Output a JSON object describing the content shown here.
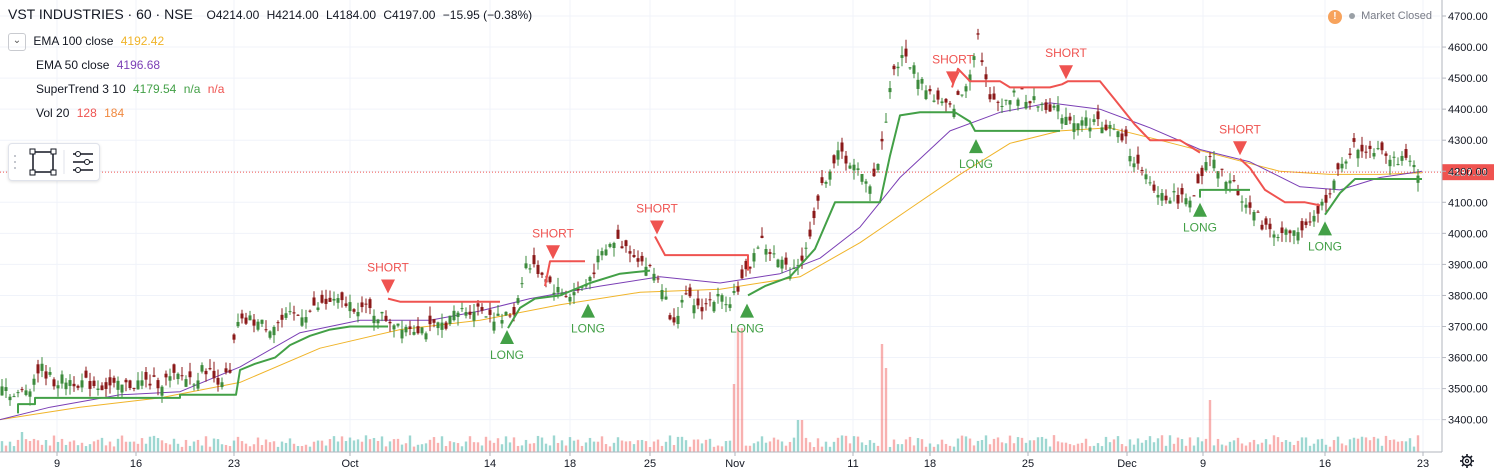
{
  "header": {
    "symbol": "VST INDUSTRIES · 60 · NSE",
    "open": "O4214.00",
    "high": "H4214.00",
    "low": "L4184.00",
    "close": "C4197.00",
    "change": "−15.95 (−0.38%)"
  },
  "status": {
    "text": "Market Closed",
    "icon": "exclamation-icon"
  },
  "legend": {
    "ema100": {
      "label": "EMA 100 close",
      "value": "4192.42",
      "color": "#f0b429"
    },
    "ema50": {
      "label": "EMA 50 close",
      "value": "4196.68",
      "color": "#7b3fb5"
    },
    "supertrend": {
      "label": "SuperTrend 3 10",
      "value": "4179.54",
      "na1": "n/a",
      "na2": "n/a",
      "color_up": "#43a047",
      "color_down": "#ef5350"
    },
    "vol": {
      "label": "Vol 20",
      "v1": "128",
      "v2": "184",
      "color_v1": "#ef5350",
      "color_v2": "#f0883e"
    }
  },
  "toolbox": {
    "icons": [
      "rectangle-select-icon",
      "object-tree-icon"
    ]
  },
  "colors": {
    "bull": "#26a69a",
    "bear": "#ef5350",
    "candle_up_body": "#3d8b3d",
    "candle_down_body": "#8b1a1a",
    "supertrend_up": "#43a047",
    "supertrend_down": "#ef5350",
    "ema100": "#f0b429",
    "ema50": "#7b3fb5",
    "price_line": "#ef5350",
    "grid": "#f0f3fa"
  },
  "chart_data": {
    "type": "candlestick",
    "x_tick_labels": [
      "9",
      "16",
      "23",
      "Oct",
      "14",
      "18",
      "25",
      "Nov",
      "11",
      "18",
      "25",
      "Dec",
      "9",
      "16",
      "23"
    ],
    "y_ticks": [
      3400,
      3500,
      3600,
      3700,
      3800,
      3900,
      4000,
      4100,
      4200,
      4300,
      4400,
      4500,
      4600,
      4700
    ],
    "y_tick_labels": [
      "3400.00",
      "3500.00",
      "3600.00",
      "3700.00",
      "3800.00",
      "3900.00",
      "4000.00",
      "4100.00",
      "4200.00",
      "4300.00",
      "4400.00",
      "4500.00",
      "4600.00",
      "4700.00"
    ],
    "ylim": [
      3320,
      4710
    ],
    "last_price": 4197.0,
    "last_price_label": "4197.00",
    "close_path": [
      [
        0,
        3530
      ],
      [
        15,
        3470
      ],
      [
        30,
        3510
      ],
      [
        40,
        3570
      ],
      [
        55,
        3520
      ],
      [
        65,
        3530
      ],
      [
        80,
        3520
      ],
      [
        100,
        3510
      ],
      [
        120,
        3505
      ],
      [
        140,
        3520
      ],
      [
        160,
        3520
      ],
      [
        180,
        3540
      ],
      [
        195,
        3530
      ],
      [
        205,
        3570
      ],
      [
        215,
        3530
      ],
      [
        230,
        3540
      ],
      [
        236,
        3700
      ],
      [
        250,
        3720
      ],
      [
        270,
        3700
      ],
      [
        290,
        3730
      ],
      [
        310,
        3750
      ],
      [
        330,
        3780
      ],
      [
        350,
        3770
      ],
      [
        370,
        3750
      ],
      [
        390,
        3720
      ],
      [
        410,
        3700
      ],
      [
        430,
        3690
      ],
      [
        445,
        3710
      ],
      [
        460,
        3750
      ],
      [
        480,
        3760
      ],
      [
        500,
        3720
      ],
      [
        515,
        3750
      ],
      [
        525,
        3900
      ],
      [
        540,
        3880
      ],
      [
        555,
        3820
      ],
      [
        570,
        3800
      ],
      [
        585,
        3830
      ],
      [
        600,
        3920
      ],
      [
        615,
        3980
      ],
      [
        630,
        3950
      ],
      [
        645,
        3900
      ],
      [
        660,
        3850
      ],
      [
        672,
        3720
      ],
      [
        685,
        3790
      ],
      [
        700,
        3760
      ],
      [
        715,
        3790
      ],
      [
        730,
        3790
      ],
      [
        745,
        3860
      ],
      [
        760,
        3980
      ],
      [
        775,
        3920
      ],
      [
        790,
        3880
      ],
      [
        805,
        3930
      ],
      [
        815,
        4080
      ],
      [
        828,
        4200
      ],
      [
        840,
        4260
      ],
      [
        855,
        4210
      ],
      [
        868,
        4150
      ],
      [
        880,
        4240
      ],
      [
        893,
        4530
      ],
      [
        905,
        4570
      ],
      [
        920,
        4500
      ],
      [
        935,
        4430
      ],
      [
        950,
        4400
      ],
      [
        965,
        4460
      ],
      [
        978,
        4640
      ],
      [
        990,
        4420
      ],
      [
        1005,
        4430
      ],
      [
        1020,
        4450
      ],
      [
        1035,
        4420
      ],
      [
        1050,
        4410
      ],
      [
        1065,
        4380
      ],
      [
        1080,
        4360
      ],
      [
        1095,
        4360
      ],
      [
        1110,
        4340
      ],
      [
        1125,
        4300
      ],
      [
        1140,
        4200
      ],
      [
        1155,
        4130
      ],
      [
        1170,
        4120
      ],
      [
        1185,
        4110
      ],
      [
        1200,
        4150
      ],
      [
        1208,
        4240
      ],
      [
        1222,
        4190
      ],
      [
        1235,
        4150
      ],
      [
        1250,
        4080
      ],
      [
        1265,
        4020
      ],
      [
        1280,
        4000
      ],
      [
        1295,
        4000
      ],
      [
        1310,
        4020
      ],
      [
        1325,
        4110
      ],
      [
        1340,
        4200
      ],
      [
        1352,
        4280
      ],
      [
        1365,
        4270
      ],
      [
        1380,
        4280
      ],
      [
        1395,
        4240
      ],
      [
        1410,
        4220
      ],
      [
        1422,
        4197
      ]
    ],
    "supertrend_up": [
      [
        [
          18,
          3420
        ],
        [
          18,
          3450
        ],
        [
          35,
          3450
        ],
        [
          35,
          3470
        ],
        [
          180,
          3470
        ],
        [
          180,
          3480
        ],
        [
          236,
          3480
        ],
        [
          240,
          3560
        ],
        [
          255,
          3580
        ],
        [
          275,
          3600
        ],
        [
          290,
          3640
        ],
        [
          310,
          3670
        ],
        [
          330,
          3690
        ],
        [
          350,
          3700
        ],
        [
          388,
          3700
        ]
      ],
      [
        [
          508,
          3695
        ],
        [
          520,
          3760
        ],
        [
          535,
          3790
        ],
        [
          560,
          3800
        ],
        [
          590,
          3840
        ],
        [
          620,
          3870
        ],
        [
          650,
          3880
        ]
      ],
      [
        [
          748,
          3800
        ],
        [
          765,
          3830
        ],
        [
          790,
          3860
        ],
        [
          815,
          3950
        ],
        [
          835,
          4100
        ],
        [
          880,
          4100
        ],
        [
          890,
          4250
        ],
        [
          900,
          4380
        ],
        [
          920,
          4390
        ],
        [
          955,
          4390
        ],
        [
          970,
          4360
        ],
        [
          975,
          4330
        ],
        [
          1060,
          4330
        ]
      ],
      [
        [
          1200,
          4115
        ],
        [
          1200,
          4140
        ],
        [
          1250,
          4140
        ]
      ],
      [
        [
          1325,
          4060
        ],
        [
          1340,
          4130
        ],
        [
          1355,
          4175
        ],
        [
          1422,
          4175
        ]
      ]
    ],
    "supertrend_down": [
      [
        [
          388,
          3790
        ],
        [
          400,
          3780
        ],
        [
          500,
          3780
        ]
      ],
      [
        [
          545,
          3830
        ],
        [
          550,
          3910
        ],
        [
          585,
          3910
        ]
      ],
      [
        [
          655,
          3990
        ],
        [
          665,
          3930
        ],
        [
          748,
          3930
        ],
        [
          748,
          3880
        ]
      ],
      [
        [
          952,
          4470
        ],
        [
          958,
          4530
        ],
        [
          970,
          4490
        ],
        [
          1000,
          4490
        ],
        [
          1010,
          4470
        ],
        [
          1050,
          4470
        ],
        [
          1062,
          4480
        ],
        [
          1068,
          4490
        ],
        [
          1100,
          4490
        ],
        [
          1115,
          4430
        ],
        [
          1135,
          4350
        ],
        [
          1150,
          4300
        ],
        [
          1180,
          4300
        ],
        [
          1200,
          4260
        ]
      ],
      [
        [
          1240,
          4240
        ],
        [
          1250,
          4210
        ],
        [
          1265,
          4140
        ],
        [
          1285,
          4100
        ],
        [
          1305,
          4100
        ],
        [
          1320,
          4090
        ]
      ]
    ],
    "ema50": [
      [
        0,
        3400
      ],
      [
        50,
        3440
      ],
      [
        120,
        3480
      ],
      [
        180,
        3490
      ],
      [
        240,
        3570
      ],
      [
        300,
        3680
      ],
      [
        360,
        3720
      ],
      [
        430,
        3720
      ],
      [
        480,
        3750
      ],
      [
        530,
        3790
      ],
      [
        600,
        3830
      ],
      [
        660,
        3860
      ],
      [
        720,
        3840
      ],
      [
        780,
        3870
      ],
      [
        820,
        3920
      ],
      [
        860,
        4020
      ],
      [
        900,
        4180
      ],
      [
        950,
        4330
      ],
      [
        1000,
        4390
      ],
      [
        1050,
        4420
      ],
      [
        1100,
        4400
      ],
      [
        1150,
        4340
      ],
      [
        1200,
        4270
      ],
      [
        1250,
        4230
      ],
      [
        1300,
        4150
      ],
      [
        1340,
        4140
      ],
      [
        1380,
        4180
      ],
      [
        1422,
        4200
      ]
    ],
    "ema100": [
      [
        0,
        3400
      ],
      [
        80,
        3440
      ],
      [
        160,
        3470
      ],
      [
        240,
        3520
      ],
      [
        320,
        3630
      ],
      [
        400,
        3690
      ],
      [
        480,
        3720
      ],
      [
        560,
        3770
      ],
      [
        640,
        3810
      ],
      [
        720,
        3820
      ],
      [
        800,
        3860
      ],
      [
        860,
        3970
      ],
      [
        910,
        4080
      ],
      [
        960,
        4190
      ],
      [
        1010,
        4290
      ],
      [
        1060,
        4330
      ],
      [
        1110,
        4340
      ],
      [
        1160,
        4300
      ],
      [
        1220,
        4250
      ],
      [
        1280,
        4200
      ],
      [
        1330,
        4190
      ],
      [
        1380,
        4190
      ],
      [
        1422,
        4195
      ]
    ],
    "signals": [
      {
        "type": "SHORT",
        "x": 388,
        "price": 3800
      },
      {
        "type": "SHORT",
        "x": 553,
        "price": 3910
      },
      {
        "type": "SHORT",
        "x": 657,
        "price": 3990
      },
      {
        "type": "SHORT",
        "x": 953,
        "price": 4470
      },
      {
        "type": "SHORT",
        "x": 1066,
        "price": 4490
      },
      {
        "type": "SHORT",
        "x": 1240,
        "price": 4245
      },
      {
        "type": "LONG",
        "x": 507,
        "price": 3695
      },
      {
        "type": "LONG",
        "x": 588,
        "price": 3780
      },
      {
        "type": "LONG",
        "x": 747,
        "price": 3780
      },
      {
        "type": "LONG",
        "x": 976,
        "price": 4310
      },
      {
        "type": "LONG",
        "x": 1200,
        "price": 4105
      },
      {
        "type": "LONG",
        "x": 1325,
        "price": 4045
      }
    ],
    "volume_spikes": [
      [
        22,
        1
      ],
      [
        45,
        0.6
      ],
      [
        300,
        0.3
      ],
      [
        735,
        3.4
      ],
      [
        740,
        6.2
      ],
      [
        800,
        1.6
      ],
      [
        884,
        5.4
      ],
      [
        886,
        4.2
      ],
      [
        1210,
        2.6
      ],
      [
        1390,
        0.6
      ]
    ]
  }
}
